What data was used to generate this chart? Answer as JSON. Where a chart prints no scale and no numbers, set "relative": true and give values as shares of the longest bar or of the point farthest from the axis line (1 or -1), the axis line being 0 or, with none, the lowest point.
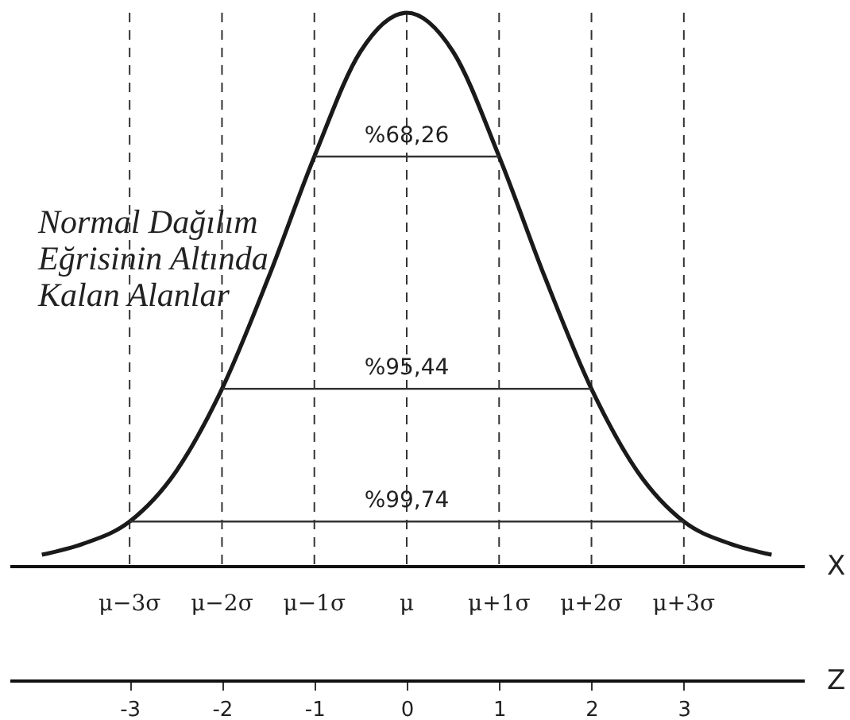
{
  "chart_data": {
    "type": "line",
    "relative": true,
    "title": "Normal Dağılım Eğrisinin Altında Kalan Alanlar",
    "xlabel": "Z",
    "x2label": "X",
    "x": [
      -3.95,
      -3.5,
      -3,
      -2.5,
      -2,
      -1.5,
      -1,
      -0.5,
      0,
      0.5,
      1,
      1.5,
      2,
      2.5,
      3,
      3.5,
      3.95
    ],
    "series": [
      {
        "color": "#1a1a1a",
        "values": [
          0.02,
          0.04,
          0.08,
          0.17,
          0.32,
          0.52,
          0.74,
          0.93,
          1,
          0.93,
          0.74,
          0.52,
          0.32,
          0.17,
          0.08,
          0.04,
          0.02
        ]
      },
      {
        "color": "#333333",
        "x": [
          -1,
          1
        ],
        "values": [
          0.74,
          0.74
        ]
      },
      {
        "color": "#333333",
        "x": [
          -2,
          2
        ],
        "values": [
          0.32,
          0.32
        ]
      },
      {
        "color": "#333333",
        "x": [
          -3,
          3
        ],
        "values": [
          0.08,
          0.08
        ]
      }
    ],
    "xlim": [
      -4.3,
      4.3
    ],
    "xticks": [
      -3,
      -2,
      -1,
      0,
      1,
      2,
      3
    ],
    "ref_lines": [
      {
        "axis": "x",
        "value": -3,
        "label": "μ−3σ",
        "line_style": "dashed"
      },
      {
        "axis": "x",
        "value": -2,
        "label": "μ−2σ",
        "line_style": "dashed"
      },
      {
        "axis": "x",
        "value": -1,
        "label": "μ−1σ",
        "line_style": "dashed"
      },
      {
        "axis": "x",
        "value": 0,
        "label": "μ",
        "line_style": "dashed"
      },
      {
        "axis": "x",
        "value": 1,
        "label": "μ+1σ",
        "line_style": "dashed"
      },
      {
        "axis": "x",
        "value": 2,
        "label": "μ+2σ",
        "line_style": "dashed"
      },
      {
        "axis": "x",
        "value": 3,
        "label": "μ+3σ",
        "line_style": "dashed"
      }
    ],
    "annotations": [
      {
        "text": "%68,26",
        "y": 0.74
      },
      {
        "text": "%95,44",
        "y": 0.32
      },
      {
        "text": "%99,74",
        "y": 0.08
      }
    ],
    "grid": false,
    "marker": "none",
    "line_style": "solid"
  }
}
